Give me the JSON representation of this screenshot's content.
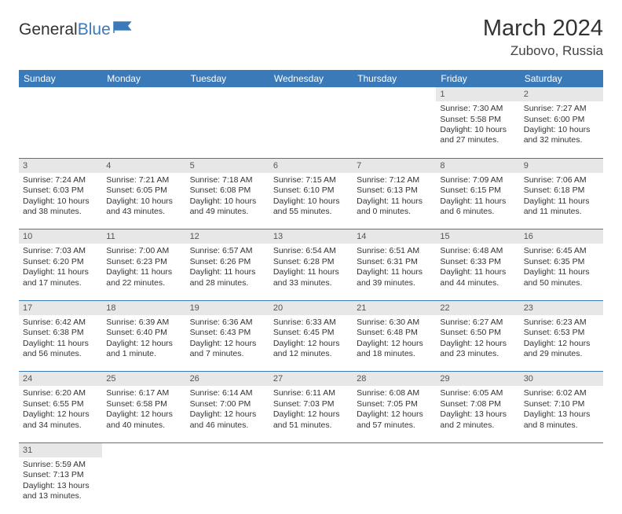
{
  "logo": {
    "text1": "General",
    "text2": "Blue"
  },
  "title": "March 2024",
  "location": "Zubovo, Russia",
  "colors": {
    "header_bg": "#3a7ab8",
    "header_text": "#ffffff",
    "daynum_bg": "#e7e7e7",
    "border": "#3a7ab8",
    "body_text": "#333333"
  },
  "weekdays": [
    "Sunday",
    "Monday",
    "Tuesday",
    "Wednesday",
    "Thursday",
    "Friday",
    "Saturday"
  ],
  "weeks": [
    [
      null,
      null,
      null,
      null,
      null,
      {
        "n": "1",
        "sr": "Sunrise: 7:30 AM",
        "ss": "Sunset: 5:58 PM",
        "d1": "Daylight: 10 hours",
        "d2": "and 27 minutes."
      },
      {
        "n": "2",
        "sr": "Sunrise: 7:27 AM",
        "ss": "Sunset: 6:00 PM",
        "d1": "Daylight: 10 hours",
        "d2": "and 32 minutes."
      }
    ],
    [
      {
        "n": "3",
        "sr": "Sunrise: 7:24 AM",
        "ss": "Sunset: 6:03 PM",
        "d1": "Daylight: 10 hours",
        "d2": "and 38 minutes."
      },
      {
        "n": "4",
        "sr": "Sunrise: 7:21 AM",
        "ss": "Sunset: 6:05 PM",
        "d1": "Daylight: 10 hours",
        "d2": "and 43 minutes."
      },
      {
        "n": "5",
        "sr": "Sunrise: 7:18 AM",
        "ss": "Sunset: 6:08 PM",
        "d1": "Daylight: 10 hours",
        "d2": "and 49 minutes."
      },
      {
        "n": "6",
        "sr": "Sunrise: 7:15 AM",
        "ss": "Sunset: 6:10 PM",
        "d1": "Daylight: 10 hours",
        "d2": "and 55 minutes."
      },
      {
        "n": "7",
        "sr": "Sunrise: 7:12 AM",
        "ss": "Sunset: 6:13 PM",
        "d1": "Daylight: 11 hours",
        "d2": "and 0 minutes."
      },
      {
        "n": "8",
        "sr": "Sunrise: 7:09 AM",
        "ss": "Sunset: 6:15 PM",
        "d1": "Daylight: 11 hours",
        "d2": "and 6 minutes."
      },
      {
        "n": "9",
        "sr": "Sunrise: 7:06 AM",
        "ss": "Sunset: 6:18 PM",
        "d1": "Daylight: 11 hours",
        "d2": "and 11 minutes."
      }
    ],
    [
      {
        "n": "10",
        "sr": "Sunrise: 7:03 AM",
        "ss": "Sunset: 6:20 PM",
        "d1": "Daylight: 11 hours",
        "d2": "and 17 minutes."
      },
      {
        "n": "11",
        "sr": "Sunrise: 7:00 AM",
        "ss": "Sunset: 6:23 PM",
        "d1": "Daylight: 11 hours",
        "d2": "and 22 minutes."
      },
      {
        "n": "12",
        "sr": "Sunrise: 6:57 AM",
        "ss": "Sunset: 6:26 PM",
        "d1": "Daylight: 11 hours",
        "d2": "and 28 minutes."
      },
      {
        "n": "13",
        "sr": "Sunrise: 6:54 AM",
        "ss": "Sunset: 6:28 PM",
        "d1": "Daylight: 11 hours",
        "d2": "and 33 minutes."
      },
      {
        "n": "14",
        "sr": "Sunrise: 6:51 AM",
        "ss": "Sunset: 6:31 PM",
        "d1": "Daylight: 11 hours",
        "d2": "and 39 minutes."
      },
      {
        "n": "15",
        "sr": "Sunrise: 6:48 AM",
        "ss": "Sunset: 6:33 PM",
        "d1": "Daylight: 11 hours",
        "d2": "and 44 minutes."
      },
      {
        "n": "16",
        "sr": "Sunrise: 6:45 AM",
        "ss": "Sunset: 6:35 PM",
        "d1": "Daylight: 11 hours",
        "d2": "and 50 minutes."
      }
    ],
    [
      {
        "n": "17",
        "sr": "Sunrise: 6:42 AM",
        "ss": "Sunset: 6:38 PM",
        "d1": "Daylight: 11 hours",
        "d2": "and 56 minutes."
      },
      {
        "n": "18",
        "sr": "Sunrise: 6:39 AM",
        "ss": "Sunset: 6:40 PM",
        "d1": "Daylight: 12 hours",
        "d2": "and 1 minute."
      },
      {
        "n": "19",
        "sr": "Sunrise: 6:36 AM",
        "ss": "Sunset: 6:43 PM",
        "d1": "Daylight: 12 hours",
        "d2": "and 7 minutes."
      },
      {
        "n": "20",
        "sr": "Sunrise: 6:33 AM",
        "ss": "Sunset: 6:45 PM",
        "d1": "Daylight: 12 hours",
        "d2": "and 12 minutes."
      },
      {
        "n": "21",
        "sr": "Sunrise: 6:30 AM",
        "ss": "Sunset: 6:48 PM",
        "d1": "Daylight: 12 hours",
        "d2": "and 18 minutes."
      },
      {
        "n": "22",
        "sr": "Sunrise: 6:27 AM",
        "ss": "Sunset: 6:50 PM",
        "d1": "Daylight: 12 hours",
        "d2": "and 23 minutes."
      },
      {
        "n": "23",
        "sr": "Sunrise: 6:23 AM",
        "ss": "Sunset: 6:53 PM",
        "d1": "Daylight: 12 hours",
        "d2": "and 29 minutes."
      }
    ],
    [
      {
        "n": "24",
        "sr": "Sunrise: 6:20 AM",
        "ss": "Sunset: 6:55 PM",
        "d1": "Daylight: 12 hours",
        "d2": "and 34 minutes."
      },
      {
        "n": "25",
        "sr": "Sunrise: 6:17 AM",
        "ss": "Sunset: 6:58 PM",
        "d1": "Daylight: 12 hours",
        "d2": "and 40 minutes."
      },
      {
        "n": "26",
        "sr": "Sunrise: 6:14 AM",
        "ss": "Sunset: 7:00 PM",
        "d1": "Daylight: 12 hours",
        "d2": "and 46 minutes."
      },
      {
        "n": "27",
        "sr": "Sunrise: 6:11 AM",
        "ss": "Sunset: 7:03 PM",
        "d1": "Daylight: 12 hours",
        "d2": "and 51 minutes."
      },
      {
        "n": "28",
        "sr": "Sunrise: 6:08 AM",
        "ss": "Sunset: 7:05 PM",
        "d1": "Daylight: 12 hours",
        "d2": "and 57 minutes."
      },
      {
        "n": "29",
        "sr": "Sunrise: 6:05 AM",
        "ss": "Sunset: 7:08 PM",
        "d1": "Daylight: 13 hours",
        "d2": "and 2 minutes."
      },
      {
        "n": "30",
        "sr": "Sunrise: 6:02 AM",
        "ss": "Sunset: 7:10 PM",
        "d1": "Daylight: 13 hours",
        "d2": "and 8 minutes."
      }
    ],
    [
      {
        "n": "31",
        "sr": "Sunrise: 5:59 AM",
        "ss": "Sunset: 7:13 PM",
        "d1": "Daylight: 13 hours",
        "d2": "and 13 minutes."
      },
      null,
      null,
      null,
      null,
      null,
      null
    ]
  ]
}
